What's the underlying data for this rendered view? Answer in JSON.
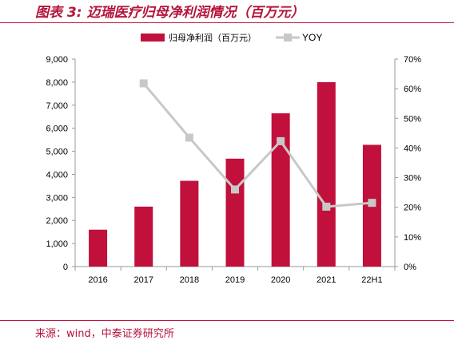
{
  "figure": {
    "title": "图表 3:  迈瑞医疗归母净利润情况（百万元）",
    "source": "来源：wind，中泰证券研究所"
  },
  "colors": {
    "accent": "#c0123c",
    "bar": "#c0103b",
    "line": "#c8c8c8",
    "axis": "#9a9a9a",
    "text": "#000000"
  },
  "chart_data": {
    "type": "bar",
    "categories": [
      "2016",
      "2017",
      "2018",
      "2019",
      "2020",
      "2021",
      "22H1"
    ],
    "series": [
      {
        "name": "归母净利润（百万元）",
        "type": "bar",
        "axis": "left",
        "values": [
          1600,
          2600,
          3720,
          4680,
          6650,
          8000,
          5280
        ]
      },
      {
        "name": "YOY",
        "type": "line",
        "axis": "right",
        "marker": "square",
        "values": [
          null,
          61.8,
          43.5,
          26.0,
          42.3,
          20.2,
          21.5
        ]
      }
    ],
    "y_left": {
      "lim": [
        0,
        9000
      ],
      "ticks": [
        0,
        1000,
        2000,
        3000,
        4000,
        5000,
        6000,
        7000,
        8000,
        9000
      ],
      "tick_labels": [
        "0",
        "1,000",
        "2,000",
        "3,000",
        "4,000",
        "5,000",
        "6,000",
        "7,000",
        "8,000",
        "9,000"
      ]
    },
    "y_right": {
      "lim": [
        0,
        70
      ],
      "ticks": [
        0,
        10,
        20,
        30,
        40,
        50,
        60,
        70
      ],
      "tick_labels": [
        "0%",
        "10%",
        "20%",
        "30%",
        "40%",
        "50%",
        "60%",
        "70%"
      ]
    },
    "legend": "top-center",
    "grid": false
  }
}
